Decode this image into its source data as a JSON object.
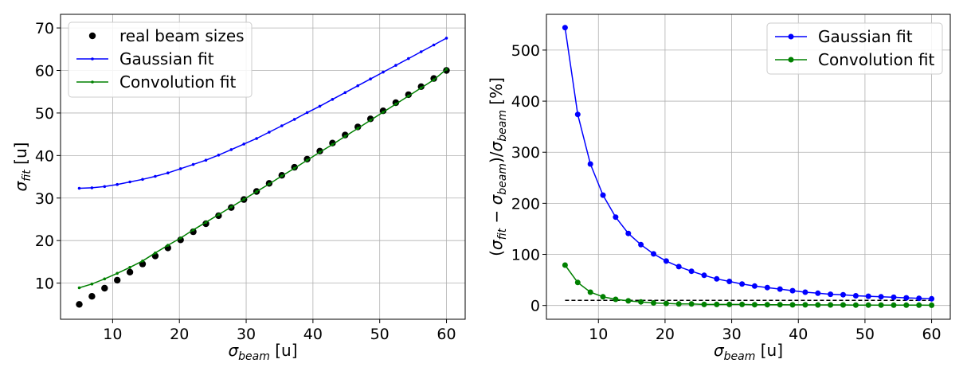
{
  "chart_data": [
    {
      "type": "line",
      "xlabel": "σbeam [u]",
      "ylabel": "σfit [u]",
      "xlim": [
        2.2,
        62.8
      ],
      "ylim": [
        1.5,
        73.2
      ],
      "xticks": [
        10,
        20,
        30,
        40,
        50,
        60
      ],
      "yticks": [
        10,
        20,
        30,
        40,
        50,
        60,
        70
      ],
      "grid": true,
      "legend": "top-left",
      "x": [
        5.0,
        6.897,
        8.793,
        10.69,
        12.586,
        14.483,
        16.379,
        18.276,
        20.172,
        22.069,
        23.966,
        25.862,
        27.759,
        29.655,
        31.552,
        33.448,
        35.345,
        37.241,
        39.138,
        41.034,
        42.931,
        44.828,
        46.724,
        48.621,
        50.517,
        52.414,
        54.31,
        56.207,
        58.103,
        60.0
      ],
      "series": [
        {
          "name": "real beam sizes",
          "style": "scatter",
          "color": "#000000",
          "values": [
            5.0,
            6.897,
            8.793,
            10.69,
            12.586,
            14.483,
            16.379,
            18.276,
            20.172,
            22.069,
            23.966,
            25.862,
            27.759,
            29.655,
            31.552,
            33.448,
            35.345,
            37.241,
            39.138,
            41.034,
            42.931,
            44.828,
            46.724,
            48.621,
            50.517,
            52.414,
            54.31,
            56.207,
            58.103,
            60.0
          ]
        },
        {
          "name": "Gaussian fit",
          "style": "line-small-marker",
          "color": "#0000ff",
          "values": [
            32.3,
            32.4,
            32.7,
            33.2,
            33.8,
            34.4,
            35.1,
            35.9,
            36.9,
            37.9,
            38.9,
            40.1,
            41.4,
            42.7,
            44.0,
            45.5,
            47.0,
            48.5,
            50.1,
            51.6,
            53.2,
            54.8,
            56.4,
            58.0,
            59.6,
            61.2,
            62.8,
            64.4,
            66.0,
            67.6
          ]
        },
        {
          "name": "Convolution fit",
          "style": "line-small-marker",
          "color": "#008000",
          "values": [
            8.9,
            9.8,
            11.0,
            12.3,
            13.7,
            15.2,
            17.1,
            18.9,
            20.6,
            22.5,
            24.3,
            26.1,
            27.9,
            29.7,
            31.5,
            33.3,
            35.2,
            37.0,
            38.9,
            40.8,
            42.6,
            44.5,
            46.4,
            48.3,
            50.2,
            52.1,
            54.0,
            55.9,
            57.8,
            60.3
          ]
        }
      ]
    },
    {
      "type": "line",
      "xlabel": "σbeam [u]",
      "ylabel": "(σfit − σbeam)/σbeam [%]",
      "xlim": [
        2.2,
        62.8
      ],
      "ylim": [
        -27,
        570
      ],
      "xticks": [
        10,
        20,
        30,
        40,
        50,
        60
      ],
      "yticks": [
        0,
        100,
        200,
        300,
        400,
        500
      ],
      "grid": true,
      "legend": "top-right",
      "x": [
        5.0,
        6.897,
        8.793,
        10.69,
        12.586,
        14.483,
        16.379,
        18.276,
        20.172,
        22.069,
        23.966,
        25.862,
        27.759,
        29.655,
        31.552,
        33.448,
        35.345,
        37.241,
        39.138,
        41.034,
        42.931,
        44.828,
        46.724,
        48.621,
        50.517,
        52.414,
        54.31,
        56.207,
        58.103,
        60.0
      ],
      "reference_line": {
        "style": "dashed",
        "color": "#000000",
        "x": [
          5,
          60
        ],
        "y": [
          10,
          10
        ]
      },
      "series": [
        {
          "name": "Gaussian fit",
          "style": "line-marker",
          "color": "#0000ff",
          "values": [
            544,
            374,
            277,
            216,
            173,
            141,
            119,
            101,
            87,
            76,
            67,
            59,
            52,
            47,
            42,
            38,
            35,
            32,
            29,
            26,
            24,
            22,
            21,
            19,
            18,
            17,
            16,
            15,
            14,
            13
          ]
        },
        {
          "name": "Convolution fit",
          "style": "line-marker",
          "color": "#008000",
          "values": [
            79,
            45,
            26,
            17,
            12,
            9,
            7,
            5,
            4,
            3,
            3,
            2,
            2,
            2,
            2,
            1.5,
            1.5,
            1.5,
            1.2,
            1.2,
            1.0,
            1.0,
            1.0,
            0.8,
            0.8,
            0.8,
            0.6,
            0.6,
            0.6,
            0.5
          ]
        }
      ]
    }
  ]
}
